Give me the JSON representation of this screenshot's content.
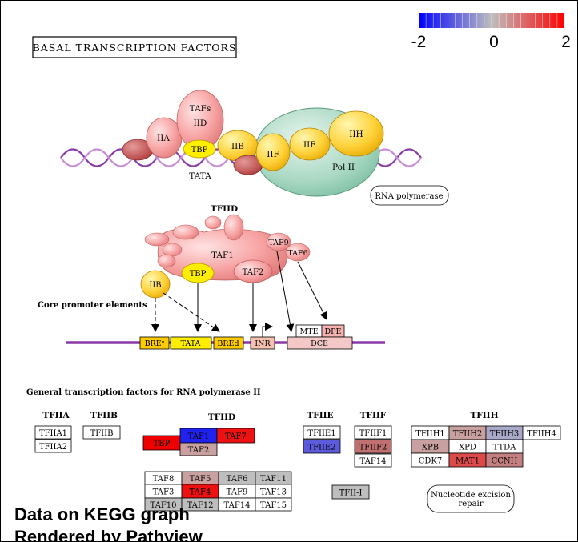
{
  "title": "BASAL TRANSCRIPTION FACTORS",
  "legend": {
    "min_label": "-2",
    "mid_label": "0",
    "max_label": "2",
    "color_low": "#0000ff",
    "color_mid": "#bebebe",
    "color_high": "#ff0000"
  },
  "complex": {
    "tafs": "TAFs",
    "iid": "IID",
    "iia": "IIA",
    "tbp": "TBP",
    "iib": "IIB",
    "iif": "IIF",
    "iie": "IIE",
    "iih": "IIH",
    "pol2": "Pol II",
    "tata": "TATA",
    "rna_polymerase": "RNA polymerase"
  },
  "tfiid_section": {
    "title": "TFIID",
    "taf1": "TAF1",
    "taf9": "TAF9",
    "taf6": "TAF6",
    "tbp": "TBP",
    "taf2": "TAF2",
    "iib": "IIB",
    "core_promoter_label": "Core promoter elements",
    "elements": {
      "breu": "BREᵘ",
      "tata": "TATA",
      "bred": "BREd",
      "inr": "INR",
      "mte": "MTE",
      "dpe": "DPE",
      "dce": "DCE"
    }
  },
  "general_section": {
    "title": "General transcription factors for RNA polymerase II",
    "tfiia": {
      "header": "TFIIA",
      "items": [
        "TFIIA1",
        "TFIIA2"
      ]
    },
    "tfiib": {
      "header": "TFIIB",
      "items": [
        "TFIIB"
      ]
    },
    "tfiid": {
      "header": "TFIID",
      "top": [
        "TBP",
        "TAF1",
        "TAF7",
        "TAF2"
      ],
      "grid": [
        "TAF8",
        "TAF5",
        "TAF6",
        "TAF11",
        "TAF3",
        "TAF4",
        "TAF9",
        "TAF13",
        "TAF10",
        "TAF12",
        "TAF14",
        "TAF15"
      ]
    },
    "tfiie": {
      "header": "TFIIE",
      "items": [
        "TFIIE1",
        "TFIIE2"
      ]
    },
    "tfiif": {
      "header": "TFIIF",
      "items": [
        "TFIIF1",
        "TFIIF2",
        "TAF14"
      ]
    },
    "tfiih": {
      "header": "TFIIH",
      "items": [
        "TFIIH1",
        "TFIIH2",
        "TFIIH3",
        "TFIIH4",
        "XPB",
        "XPD",
        "TTDA",
        "CDK7",
        "MAT1",
        "CCNH"
      ]
    },
    "tfii_i": "TFII-I",
    "nucleotide_excision_repair": "Nucleotide excision repair"
  },
  "footer": {
    "line1": "Data on KEGG graph",
    "line2": "Rendered by Pathview"
  }
}
